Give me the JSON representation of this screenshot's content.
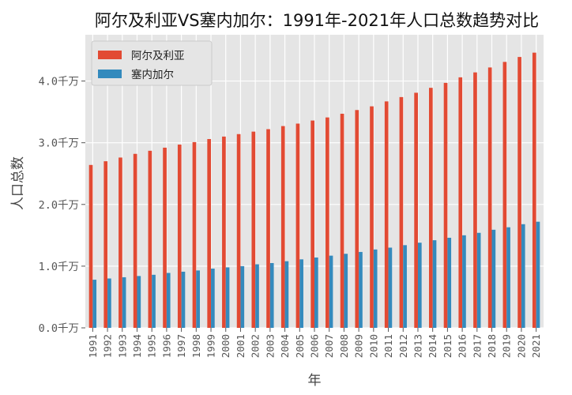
{
  "chart_data": {
    "type": "bar",
    "title": "阿尔及利亚VS塞内加尔：1991年-2021年人口总数趋势对比",
    "xlabel": "年",
    "ylabel": "人口总数",
    "categories": [
      "1991",
      "1992",
      "1993",
      "1994",
      "1995",
      "1996",
      "1997",
      "1998",
      "1999",
      "2000",
      "2001",
      "2002",
      "2003",
      "2004",
      "2005",
      "2006",
      "2007",
      "2008",
      "2009",
      "2010",
      "2011",
      "2012",
      "2013",
      "2014",
      "2015",
      "2016",
      "2017",
      "2018",
      "2019",
      "2020",
      "2021"
    ],
    "series": [
      {
        "name": "阿尔及利亚",
        "color": "#E24A33",
        "values": [
          26.4,
          27.0,
          27.6,
          28.2,
          28.7,
          29.2,
          29.7,
          30.1,
          30.6,
          31.0,
          31.4,
          31.8,
          32.2,
          32.7,
          33.1,
          33.6,
          34.1,
          34.7,
          35.3,
          35.9,
          36.7,
          37.4,
          38.1,
          38.9,
          39.7,
          40.6,
          41.4,
          42.2,
          43.1,
          43.9,
          44.6
        ]
      },
      {
        "name": "塞内加尔",
        "color": "#348ABD",
        "values": [
          7.8,
          8.0,
          8.2,
          8.4,
          8.6,
          8.9,
          9.1,
          9.3,
          9.6,
          9.8,
          10.0,
          10.3,
          10.5,
          10.8,
          11.1,
          11.4,
          11.7,
          12.0,
          12.3,
          12.7,
          13.0,
          13.4,
          13.8,
          14.2,
          14.6,
          15.0,
          15.4,
          15.9,
          16.3,
          16.8,
          17.2
        ]
      }
    ],
    "unit_values": "百万",
    "ylim": [
      0,
      47.5
    ],
    "yticks": [
      0,
      10,
      20,
      30,
      40
    ],
    "ytick_labels": [
      "0.0千万",
      "1.0千万",
      "2.0千万",
      "3.0千万",
      "4.0千万"
    ],
    "grid": true,
    "legend_position": "top-left",
    "plot_background": "#E5E5E5",
    "grid_color": "#FFFFFF"
  }
}
